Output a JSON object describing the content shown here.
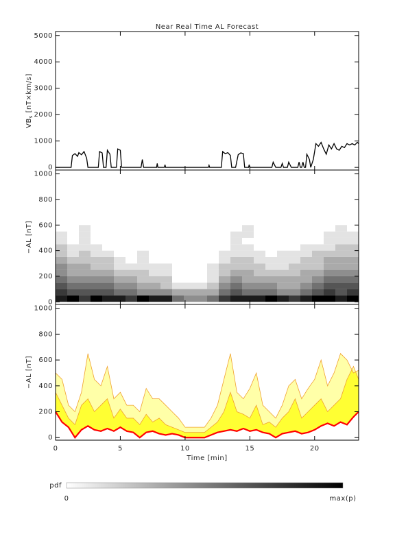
{
  "chart_data": [
    {
      "type": "line",
      "title": "Near Real Time AL Forecast",
      "ylabel": {
        "main": "VB",
        "sub": "s",
        "rest": " [nT×km/s]"
      },
      "xlim": [
        0,
        23.4
      ],
      "xticks": [
        0,
        5,
        10,
        15,
        20
      ],
      "ylim": [
        -100,
        5150
      ],
      "yticks": [
        0,
        1000,
        2000,
        3000,
        4000,
        5000
      ],
      "series": [
        {
          "color": "#000000",
          "x": [
            0,
            1.2,
            1.3,
            1.5,
            1.7,
            1.8,
            2.0,
            2.2,
            2.4,
            2.5,
            3.3,
            3.4,
            3.6,
            3.7,
            3.9,
            4.0,
            4.2,
            4.3,
            4.7,
            4.8,
            5.0,
            5.1,
            6.6,
            6.7,
            6.8,
            7.8,
            7.85,
            7.9,
            8.4,
            8.45,
            8.5,
            11.8,
            11.85,
            11.9,
            12.8,
            12.9,
            13.1,
            13.3,
            13.5,
            13.6,
            13.9,
            14.1,
            14.3,
            14.5,
            14.6,
            14.9,
            14.95,
            15.0,
            16.7,
            16.8,
            16.9,
            17.0,
            17.4,
            17.5,
            17.6,
            17.9,
            18.0,
            18.1,
            18.2,
            18.7,
            18.8,
            18.9,
            19.0,
            19.1,
            19.2,
            19.3,
            19.4,
            19.6,
            19.7,
            19.9,
            20.1,
            20.3,
            20.5,
            20.7,
            20.9,
            21.1,
            21.3,
            21.5,
            21.7,
            21.9,
            22.1,
            22.3,
            22.5,
            22.7,
            22.9,
            23.1,
            23.3,
            23.4
          ],
          "values": [
            0,
            0,
            450,
            520,
            420,
            560,
            480,
            600,
            350,
            0,
            0,
            600,
            550,
            0,
            0,
            650,
            500,
            0,
            0,
            700,
            650,
            0,
            0,
            300,
            0,
            0,
            150,
            0,
            0,
            100,
            0,
            0,
            80,
            0,
            0,
            600,
            520,
            560,
            450,
            0,
            0,
            480,
            550,
            520,
            0,
            0,
            100,
            0,
            0,
            200,
            100,
            0,
            0,
            150,
            0,
            0,
            200,
            100,
            0,
            0,
            200,
            0,
            0,
            200,
            0,
            0,
            500,
            300,
            0,
            300,
            900,
            800,
            950,
            700,
            500,
            850,
            700,
            900,
            700,
            650,
            800,
            750,
            900,
            850,
            900,
            850,
            950,
            900
          ]
        }
      ]
    },
    {
      "type": "heatmap",
      "ylabel": "−AL [nT]",
      "xlim": [
        0,
        23.4
      ],
      "xticks": [
        0,
        5,
        10,
        15,
        20
      ],
      "ylim": [
        -20,
        1030
      ],
      "yticks": [
        0,
        200,
        400,
        600,
        800,
        1000
      ],
      "xbins": [
        0,
        0.9,
        1.8,
        2.7,
        3.6,
        4.5,
        5.4,
        6.3,
        7.2,
        8.1,
        9.0,
        9.9,
        10.8,
        11.7,
        12.6,
        13.5,
        14.4,
        15.3,
        16.2,
        17.1,
        18.0,
        18.9,
        19.8,
        20.7,
        21.6,
        22.5,
        23.4
      ],
      "ybins": [
        0,
        50,
        100,
        150,
        200,
        250,
        300,
        350,
        400,
        450,
        500,
        550,
        600
      ],
      "zlim": [
        0,
        9
      ],
      "z": [
        [
          8,
          9,
          7,
          9,
          8,
          8,
          7,
          9,
          8,
          8,
          5,
          4,
          4,
          5,
          7,
          8,
          8,
          8,
          9,
          8,
          7,
          8,
          9,
          9,
          8,
          9
        ],
        [
          7,
          6,
          6,
          6,
          6,
          5,
          5,
          4,
          4,
          4,
          3,
          3,
          3,
          3,
          5,
          6,
          5,
          5,
          5,
          4,
          4,
          5,
          6,
          7,
          6,
          7
        ],
        [
          6,
          5,
          5,
          5,
          5,
          4,
          4,
          3,
          3,
          2,
          1,
          1,
          1,
          2,
          4,
          5,
          4,
          4,
          4,
          3,
          3,
          4,
          5,
          6,
          6,
          6
        ],
        [
          5,
          4,
          4,
          4,
          4,
          3,
          3,
          2,
          2,
          2,
          0,
          0,
          0,
          1,
          3,
          4,
          3,
          3,
          3,
          3,
          3,
          3,
          4,
          5,
          5,
          5
        ],
        [
          4,
          3,
          3,
          3,
          3,
          2,
          2,
          2,
          1,
          1,
          0,
          0,
          0,
          1,
          2,
          3,
          3,
          2,
          2,
          2,
          2,
          3,
          3,
          4,
          4,
          4
        ],
        [
          4,
          3,
          3,
          2,
          2,
          1,
          1,
          1,
          1,
          1,
          0,
          0,
          0,
          1,
          2,
          2,
          2,
          2,
          1,
          1,
          2,
          2,
          2,
          3,
          3,
          3
        ],
        [
          3,
          2,
          2,
          2,
          2,
          1,
          0,
          1,
          0,
          0,
          0,
          0,
          0,
          0,
          1,
          2,
          2,
          1,
          1,
          1,
          1,
          2,
          2,
          3,
          3,
          3
        ],
        [
          2,
          1,
          2,
          1,
          1,
          0,
          0,
          1,
          0,
          0,
          0,
          0,
          0,
          0,
          1,
          1,
          1,
          1,
          0,
          1,
          1,
          1,
          2,
          2,
          2,
          2
        ],
        [
          2,
          1,
          1,
          1,
          0,
          0,
          0,
          0,
          0,
          0,
          0,
          0,
          0,
          0,
          0,
          1,
          1,
          0,
          0,
          0,
          0,
          1,
          1,
          1,
          2,
          2
        ],
        [
          1,
          0,
          1,
          0,
          0,
          0,
          0,
          0,
          0,
          0,
          0,
          0,
          0,
          0,
          0,
          1,
          0,
          0,
          0,
          0,
          0,
          0,
          0,
          1,
          1,
          1
        ],
        [
          1,
          0,
          1,
          0,
          0,
          0,
          0,
          0,
          0,
          0,
          0,
          0,
          0,
          0,
          0,
          1,
          1,
          0,
          0,
          0,
          0,
          0,
          0,
          1,
          1,
          1
        ],
        [
          0,
          0,
          1,
          0,
          0,
          0,
          0,
          0,
          0,
          0,
          0,
          0,
          0,
          0,
          0,
          0,
          1,
          0,
          0,
          0,
          0,
          0,
          0,
          0,
          1,
          0
        ]
      ],
      "colorbar": {
        "label": "pdf",
        "max_label": "max(p)"
      }
    },
    {
      "type": "band",
      "ylabel": "−AL [nT]",
      "xlabel": "Time [min]",
      "xlim": [
        0,
        23.4
      ],
      "xticks": [
        0,
        5,
        10,
        15,
        20
      ],
      "ylim": [
        -20,
        1030
      ],
      "yticks": [
        0,
        200,
        400,
        600,
        800,
        1000
      ],
      "x": [
        0,
        0.5,
        1,
        1.5,
        2,
        2.5,
        3,
        3.5,
        4,
        4.5,
        5,
        5.5,
        6,
        6.5,
        7,
        7.5,
        8,
        8.5,
        9,
        9.5,
        10,
        10.5,
        11,
        11.5,
        12,
        12.5,
        13,
        13.5,
        14,
        14.5,
        15,
        15.5,
        16,
        16.5,
        17,
        17.5,
        18,
        18.5,
        19,
        19.5,
        20,
        20.5,
        21,
        21.5,
        22,
        22.5,
        23,
        23.4
      ],
      "series": [
        {
          "color": "#ff0000",
          "values": [
            200,
            120,
            80,
            0,
            60,
            90,
            60,
            50,
            70,
            50,
            80,
            50,
            40,
            0,
            40,
            50,
            30,
            20,
            30,
            20,
            0,
            0,
            0,
            0,
            20,
            40,
            50,
            60,
            50,
            70,
            50,
            60,
            40,
            30,
            0,
            30,
            40,
            50,
            30,
            40,
            60,
            90,
            110,
            90,
            120,
            100,
            160,
            200
          ]
        },
        {
          "color": "#f0a030",
          "fill": "#ffff33",
          "values": [
            350,
            250,
            150,
            100,
            250,
            300,
            200,
            250,
            300,
            150,
            220,
            150,
            150,
            100,
            180,
            120,
            150,
            100,
            80,
            60,
            40,
            40,
            40,
            40,
            80,
            120,
            200,
            350,
            200,
            180,
            150,
            250,
            100,
            120,
            80,
            150,
            200,
            300,
            150,
            200,
            250,
            300,
            200,
            250,
            300,
            450,
            550,
            450
          ]
        },
        {
          "color": "#f0a030",
          "fill": "#ffffa8",
          "values": [
            500,
            450,
            250,
            200,
            350,
            650,
            450,
            400,
            550,
            300,
            350,
            250,
            250,
            200,
            380,
            300,
            300,
            250,
            200,
            150,
            80,
            80,
            80,
            80,
            150,
            250,
            450,
            650,
            350,
            300,
            380,
            500,
            250,
            200,
            150,
            250,
            400,
            450,
            300,
            380,
            450,
            600,
            400,
            500,
            650,
            600,
            500,
            520
          ]
        }
      ]
    }
  ]
}
